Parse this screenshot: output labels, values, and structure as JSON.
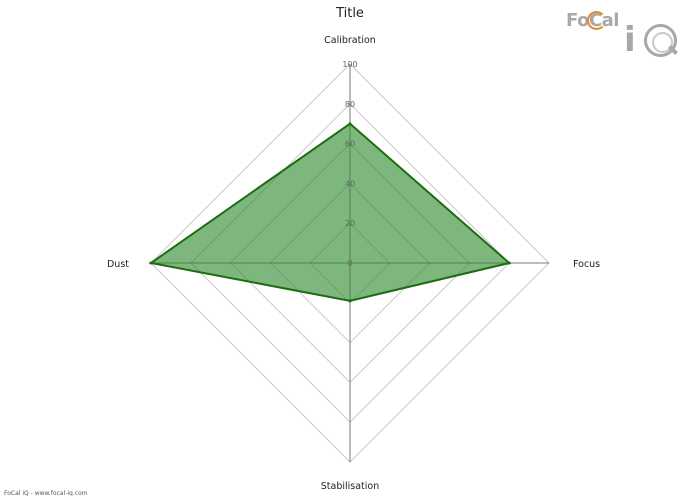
{
  "chart_data": {
    "type": "radar",
    "title": "Title",
    "axes": [
      "Calibration",
      "Focus",
      "Stabilisation",
      "Dust"
    ],
    "rlim": [
      0,
      100
    ],
    "ticks": [
      "0",
      "20",
      "40",
      "60",
      "80",
      "100"
    ],
    "grid": true,
    "series": [
      {
        "values": [
          70,
          80,
          19,
          100
        ],
        "color": "#1f6b12",
        "fill": "#2e8b2e"
      }
    ]
  },
  "logo": {
    "text": "FoCal",
    "suffix": "iQ"
  },
  "footer": {
    "text": "FoCal iQ - www.focal-iq.com"
  }
}
